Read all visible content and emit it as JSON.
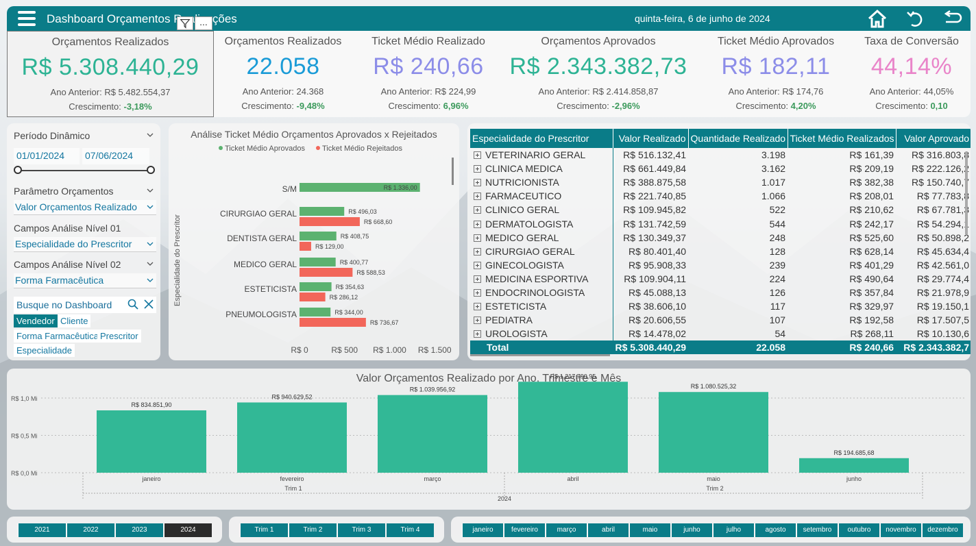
{
  "header": {
    "title": "Dashboard Orçamentos Realizações",
    "date": "quinta-feira, 6 de junho de 2024",
    "filter_icon": "filter-icon",
    "more_label": "..."
  },
  "kpis": [
    {
      "title": "Orçamentos Realizados",
      "value": "R$ 5.308.440,29",
      "prev_label": "Ano Anterior: R$ 5.482.554,37",
      "growth_label": "Crescimento:",
      "growth": "-3,18%",
      "color": "#2db394"
    },
    {
      "title": "Orçamentos Realizados",
      "value": "22.058",
      "prev_label": "Ano Anterior: 24.368",
      "growth_label": "Crescimento:",
      "growth": "-9,48%",
      "color": "#1a9bd7"
    },
    {
      "title": "Ticket Médio Realizado",
      "value": "R$ 240,66",
      "prev_label": "Ano Anterior: R$ 224,99",
      "growth_label": "Crescimento:",
      "growth": "6,96%",
      "color": "#8c8de8"
    },
    {
      "title": "Orçamentos Aprovados",
      "value": "R$ 2.343.382,73",
      "prev_label": "Ano Anterior: R$ 2.414.858,87",
      "growth_label": "Crescimento:",
      "growth": "-2,96%",
      "color": "#2db394"
    },
    {
      "title": "Ticket Médio Aprovados",
      "value": "R$ 182,11",
      "prev_label": "Ano Anterior: R$ 174,76",
      "growth_label": "Crescimento:",
      "growth": "4,20%",
      "color": "#8c8de8"
    },
    {
      "title": "Taxa de Conversão",
      "value": "44,14%",
      "prev_label": "Ano Anterior: 44,05%",
      "growth_label": "Crescimento:",
      "growth": "0,10",
      "color": "#e984c9"
    }
  ],
  "filters": {
    "periodo_label": "Período Dinâmico",
    "date_from": "01/01/2024",
    "date_to": "07/06/2024",
    "param_label": "Parâmetro Orçamentos",
    "param_value": "Valor Orçamentos Realizado",
    "nivel1_label": "Campos Análise Nível 01",
    "nivel1_value": "Especialidade do Prescritor",
    "nivel2_label": "Campos Análise Nível 02",
    "nivel2_value": "Forma Farmacêutica",
    "search_placeholder": "Busque no Dashboard",
    "chips": [
      "Vendedor",
      "Cliente",
      "Forma Farmacêutica",
      "Prescritor",
      "Especialidade"
    ],
    "chip_selected": "Vendedor"
  },
  "ticket_chart": {
    "title": "Análise Ticket Médio Orçamentos Aprovados x Rejeitados",
    "legend": [
      "Ticket Médio Aprovados",
      "Ticket Médio Rejeitados"
    ],
    "ylabel": "Especialidade do Prescritor",
    "ticks": [
      "R$ 0",
      "R$ 500",
      "R$ 1.000",
      "R$ 1.500"
    ],
    "colors": [
      "#5cb270",
      "#f2665a"
    ]
  },
  "chart_data": [
    {
      "type": "bar",
      "orientation": "horizontal",
      "title": "Análise Ticket Médio Orçamentos Aprovados x Rejeitados",
      "ylabel": "Especialidade do Prescritor",
      "xlim": [
        0,
        1700
      ],
      "categories": [
        "S/M",
        "CIRURGIAO GERAL",
        "DENTISTA GERAL",
        "MEDICO GERAL",
        "ESTETICISTA",
        "PNEUMOLOGISTA"
      ],
      "series": [
        {
          "name": "Ticket Médio Aprovados",
          "values": [
            1336.0,
            496.03,
            408.75,
            400.77,
            354.63,
            344.0
          ],
          "labels": [
            "R$ 1.336,00",
            "R$ 496,03",
            "R$ 408,75",
            "R$ 400,77",
            "R$ 354,63",
            "R$ 344,00"
          ]
        },
        {
          "name": "Ticket Médio Rejeitados",
          "values": [
            null,
            668.6,
            129.0,
            588.53,
            286.12,
            736.67
          ],
          "labels": [
            "",
            "R$ 668,60",
            "R$ 129,00",
            "R$ 588,53",
            "R$ 286,12",
            "R$ 736,67"
          ]
        }
      ]
    },
    {
      "type": "bar",
      "title": "Valor Orçamentos Realizado por Ano, Trimestre e Mês",
      "ylim": [
        0,
        1300000
      ],
      "yticks": [
        "R$ 0,0 Mi",
        "R$ 0,5 Mi",
        "R$ 1,0 Mi"
      ],
      "categories": [
        "janeiro",
        "fevereiro",
        "março",
        "abril",
        "maio",
        "junho"
      ],
      "values": [
        834851.9,
        940629.52,
        1039956.92,
        1217790.95,
        1080525.32,
        194685.68
      ],
      "labels": [
        "R$ 834.851,90",
        "R$ 940.629,52",
        "R$ 1.039.956,92",
        "R$ 1.217.790,95",
        "R$ 1.080.525,32",
        "R$ 194.685,68"
      ],
      "quarters": [
        "Trim 1",
        "Trim 2"
      ],
      "year": "2024",
      "color": "#32b896"
    }
  ],
  "table": {
    "headers": [
      "Especialidade do Prescritor",
      "Valor Realizado",
      "Quantidade Realizado",
      "Ticket Médio Realizados",
      "Valor Aprovado"
    ],
    "rows": [
      [
        "VETERINARIO GERAL",
        "R$ 516.132,41",
        "3.198",
        "R$ 161,39",
        "R$ 316.803,8"
      ],
      [
        "CLINICA MEDICA",
        "R$ 661.449,84",
        "3.162",
        "R$ 209,19",
        "R$ 222.126,2"
      ],
      [
        "NUTRICIONISTA",
        "R$ 388.875,58",
        "1.017",
        "R$ 382,38",
        "R$ 150.740,7"
      ],
      [
        "FARMACEUTICO",
        "R$ 221.740,85",
        "1.066",
        "R$ 208,01",
        "R$ 77.783,8"
      ],
      [
        "CLINICO GERAL",
        "R$ 109.945,82",
        "522",
        "R$ 210,62",
        "R$ 67.781,3"
      ],
      [
        "DERMATOLOGISTA",
        "R$ 131.742,59",
        "544",
        "R$ 242,17",
        "R$ 54.294,1"
      ],
      [
        "MEDICO GERAL",
        "R$ 130.349,37",
        "248",
        "R$ 525,60",
        "R$ 50.898,2"
      ],
      [
        "CIRURGIAO GERAL",
        "R$ 80.401,40",
        "128",
        "R$ 628,14",
        "R$ 45.634,4"
      ],
      [
        "GINECOLOGISTA",
        "R$ 95.908,33",
        "239",
        "R$ 401,29",
        "R$ 42.561,0"
      ],
      [
        "MEDICINA ESPORTIVA",
        "R$ 109.904,11",
        "224",
        "R$ 490,64",
        "R$ 29.774,4"
      ],
      [
        "ENDOCRINOLOGISTA",
        "R$ 45.088,13",
        "126",
        "R$ 357,84",
        "R$ 21.978,9"
      ],
      [
        "ESTETICISTA",
        "R$ 38.606,10",
        "117",
        "R$ 329,97",
        "R$ 19.150,1"
      ],
      [
        "PEDIATRA",
        "R$ 20.606,55",
        "107",
        "R$ 192,58",
        "R$ 17.507,5"
      ],
      [
        "UROLOGISTA",
        "R$ 14.478,02",
        "54",
        "R$ 268,11",
        "R$ 10.130,6"
      ]
    ],
    "total": [
      "Total",
      "R$ 5.308.440,29",
      "22.058",
      "R$ 240,66",
      "R$ 2.343.382,7"
    ]
  },
  "slicers": {
    "years": [
      "2021",
      "2022",
      "2023",
      "2024"
    ],
    "year_selected": "2024",
    "quarters": [
      "Trim 1",
      "Trim 2",
      "Trim 3",
      "Trim 4"
    ],
    "months": [
      "janeiro",
      "fevereiro",
      "março",
      "abril",
      "maio",
      "junho",
      "julho",
      "agosto",
      "setembro",
      "outubro",
      "novembro",
      "dezembro"
    ]
  }
}
